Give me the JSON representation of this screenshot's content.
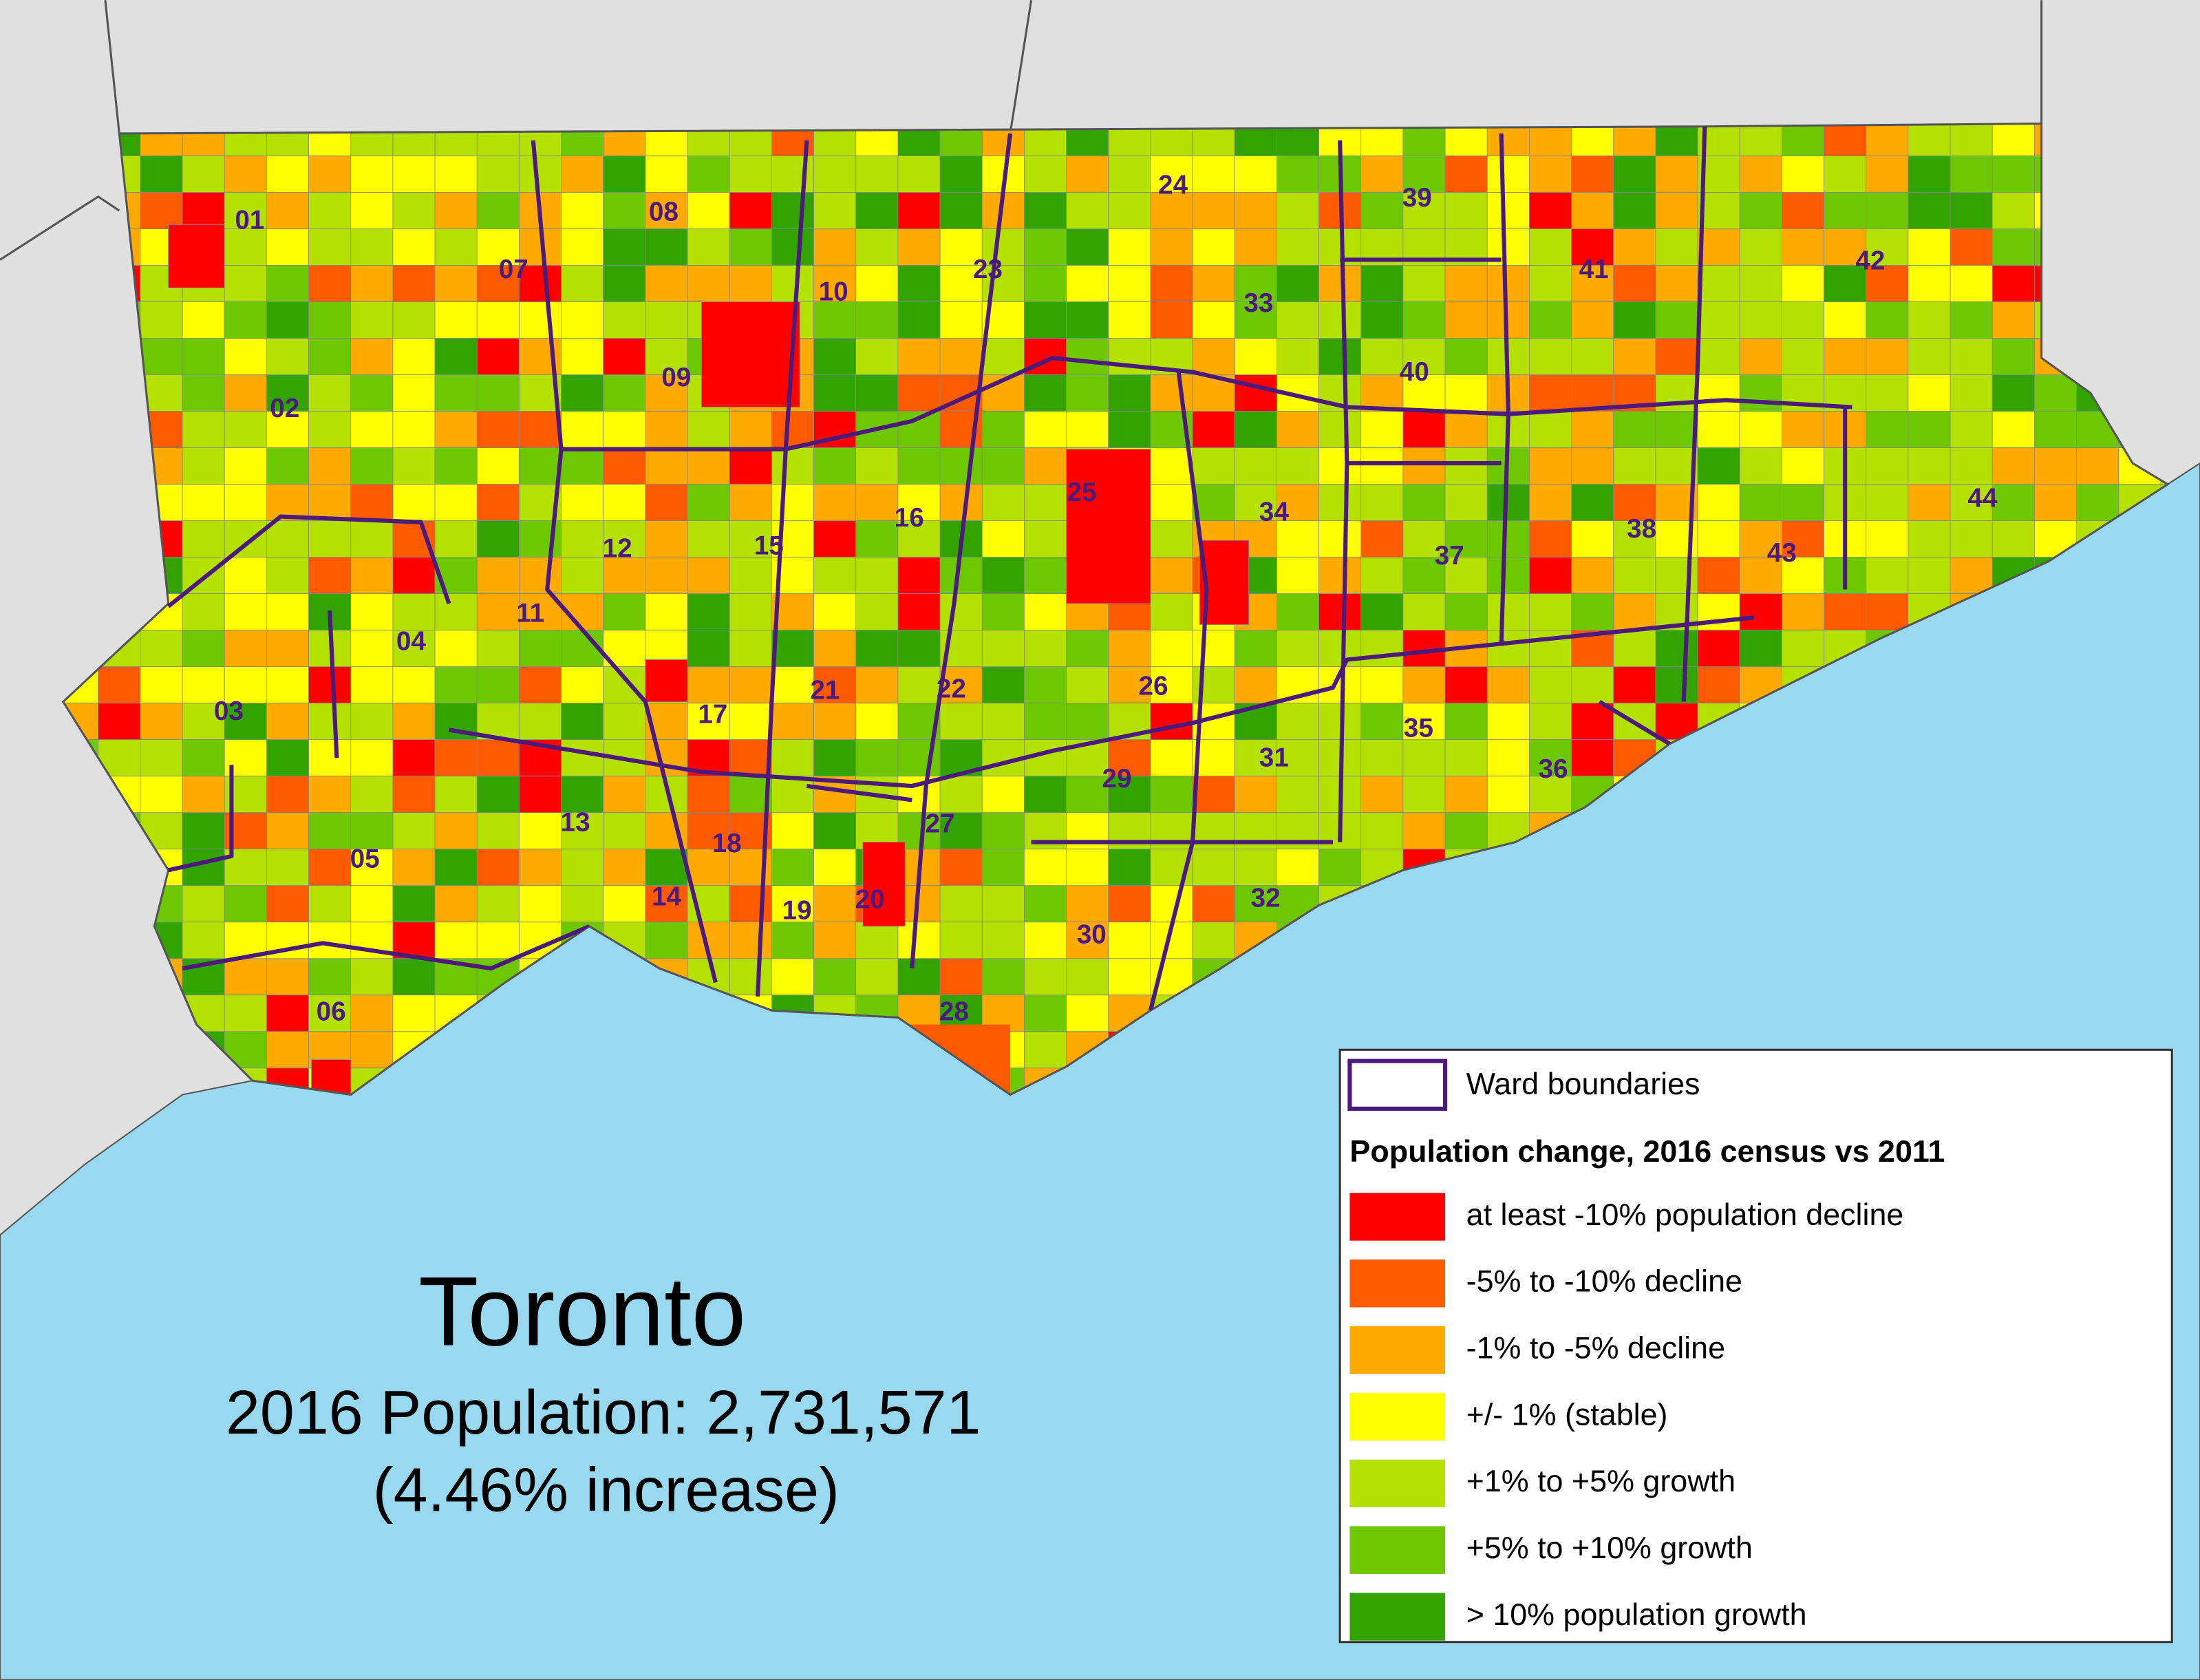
{
  "title": "Toronto",
  "subtitle": "2016 Population: 2,731,571",
  "change": "(4.46% increase)",
  "legend": {
    "ward_boundaries": "Ward boundaries",
    "ward_color": "#4b1a7a",
    "title": "Population change, 2016 census vs 2011",
    "classes": [
      {
        "label": "at least -10% population decline",
        "color": "#ff0000"
      },
      {
        "label": "-5% to -10% decline",
        "color": "#ff5a00"
      },
      {
        "label": "-1% to -5% decline",
        "color": "#ffaa00"
      },
      {
        "label": "+/- 1% (stable)",
        "color": "#ffff00"
      },
      {
        "label": "+1% to +5% growth",
        "color": "#b4e100"
      },
      {
        "label": "+5% to +10% growth",
        "color": "#6ec800"
      },
      {
        "label": "> 10% population growth",
        "color": "#33a300"
      }
    ]
  },
  "wards": [
    "01",
    "02",
    "03",
    "04",
    "05",
    "06",
    "07",
    "08",
    "09",
    "10",
    "11",
    "12",
    "13",
    "14",
    "15",
    "16",
    "17",
    "18",
    "19",
    "20",
    "21",
    "22",
    "23",
    "24",
    "25",
    "26",
    "27",
    "28",
    "29",
    "30",
    "31",
    "32",
    "33",
    "34",
    "35",
    "36",
    "37",
    "38",
    "39",
    "40",
    "41",
    "42",
    "43",
    "44"
  ]
}
